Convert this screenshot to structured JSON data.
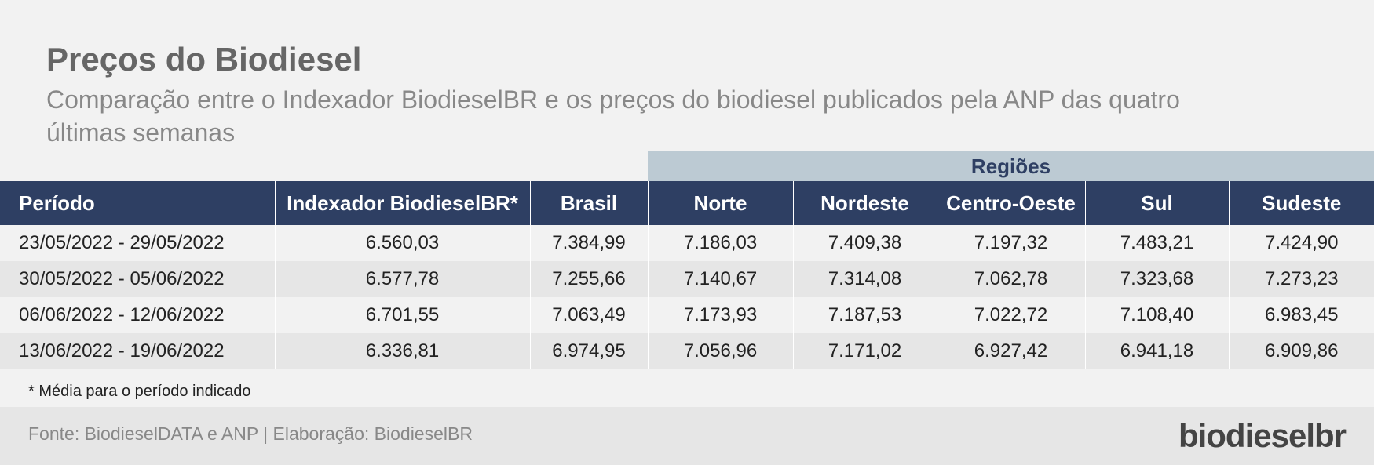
{
  "header": {
    "title": "Preços do Biodiesel",
    "subtitle": "Comparação entre o Indexador BiodieselBR e os preços do biodiesel publicados pela ANP das quatro últimas semanas"
  },
  "table": {
    "group_header": "Regiões",
    "columns": [
      "Período",
      "Indexador BiodieselBR*",
      "Brasil",
      "Norte",
      "Nordeste",
      "Centro-Oeste",
      "Sul",
      "Sudeste"
    ],
    "rows": [
      [
        "23/05/2022 - 29/05/2022",
        "6.560,03",
        "7.384,99",
        "7.186,03",
        "7.409,38",
        "7.197,32",
        "7.483,21",
        "7.424,90"
      ],
      [
        "30/05/2022 - 05/06/2022",
        "6.577,78",
        "7.255,66",
        "7.140,67",
        "7.314,08",
        "7.062,78",
        "7.323,68",
        "7.273,23"
      ],
      [
        "06/06/2022 - 12/06/2022",
        "6.701,55",
        "7.063,49",
        "7.173,93",
        "7.187,53",
        "7.022,72",
        "7.108,40",
        "6.983,45"
      ],
      [
        "13/06/2022 - 19/06/2022",
        "6.336,81",
        "6.974,95",
        "7.056,96",
        "7.171,02",
        "6.927,42",
        "6.941,18",
        "6.909,86"
      ]
    ]
  },
  "footnote": "* Média para o período indicado",
  "footer": {
    "source": "Fonte: BiodieselDATA e ANP | Elaboração: BiodieselBR",
    "logo": "biodieselbr"
  }
}
